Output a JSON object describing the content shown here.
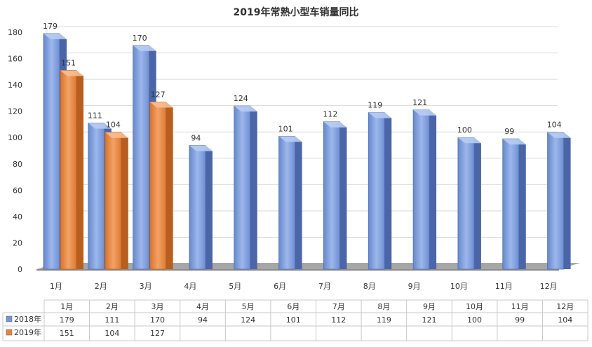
{
  "chart_data": {
    "type": "bar",
    "title": "2019年常熟小型车销量同比",
    "categories": [
      "1月",
      "2月",
      "3月",
      "4月",
      "5月",
      "6月",
      "7月",
      "8月",
      "9月",
      "10月",
      "11月",
      "12月"
    ],
    "series": [
      {
        "name": "2018年",
        "values": [
          179,
          111,
          170,
          94,
          124,
          101,
          112,
          119,
          121,
          100,
          99,
          104
        ],
        "color": "#7596D6"
      },
      {
        "name": "2019年",
        "values": [
          151,
          104,
          127,
          null,
          null,
          null,
          null,
          null,
          null,
          null,
          null,
          null
        ],
        "color": "#E8843A"
      }
    ],
    "ylim": [
      0,
      180
    ],
    "yticks": [
      0,
      20,
      40,
      60,
      80,
      100,
      120,
      140,
      160,
      180
    ],
    "grid": true,
    "data_table": true,
    "style": "3d-column"
  }
}
